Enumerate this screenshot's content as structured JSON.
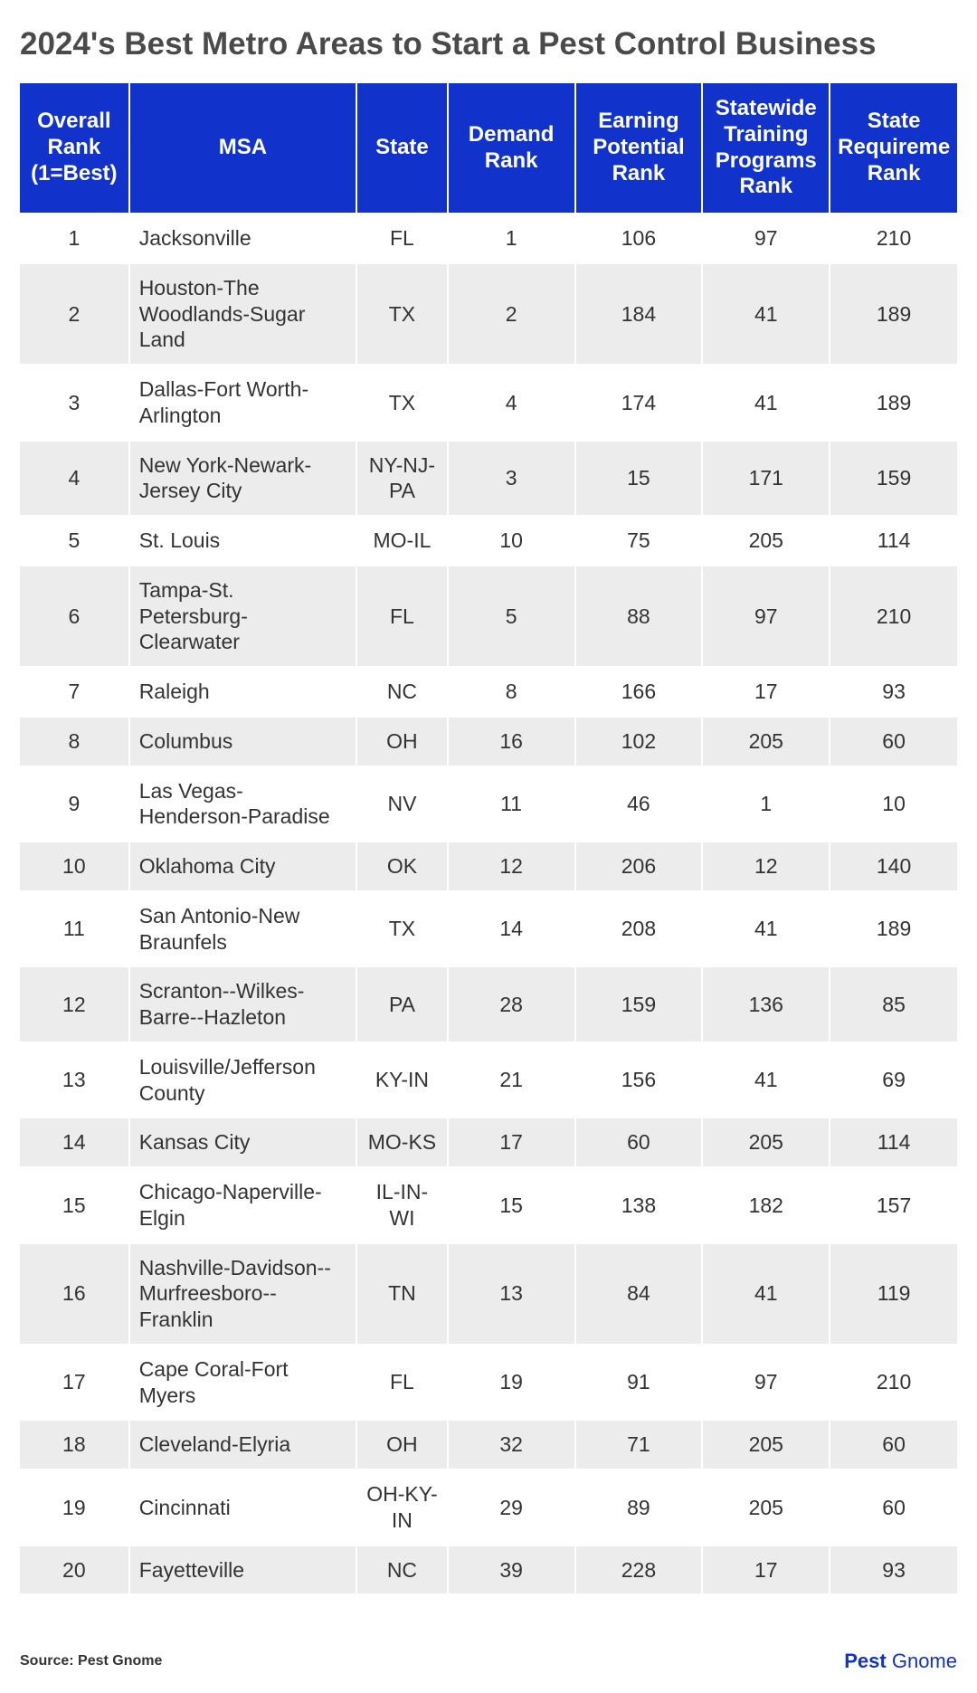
{
  "title": "2024's Best Metro Areas to Start a Pest Control Business",
  "header_bg": "#1133cc",
  "header_fg": "#ffffff",
  "row_bg_odd": "#ffffff",
  "row_bg_even": "#ececec",
  "cell_fg": "#333333",
  "title_fg": "#4a4a4a",
  "columns": [
    "Overall Rank (1=Best)",
    "MSA",
    "State",
    "Demand Rank",
    "Earning Potential Rank",
    "Statewide Training Programs Rank",
    "State Requireme Rank"
  ],
  "rows": [
    {
      "rank": "1",
      "msa": "Jacksonville",
      "state": "FL",
      "demand": "1",
      "earning": "106",
      "training": "97",
      "req": "210"
    },
    {
      "rank": "2",
      "msa": "Houston-The Woodlands-Sugar Land",
      "state": "TX",
      "demand": "2",
      "earning": "184",
      "training": "41",
      "req": "189"
    },
    {
      "rank": "3",
      "msa": "Dallas-Fort Worth-Arlington",
      "state": "TX",
      "demand": "4",
      "earning": "174",
      "training": "41",
      "req": "189"
    },
    {
      "rank": "4",
      "msa": "New York-Newark-Jersey City",
      "state": "NY-NJ-PA",
      "demand": "3",
      "earning": "15",
      "training": "171",
      "req": "159"
    },
    {
      "rank": "5",
      "msa": "St. Louis",
      "state": "MO-IL",
      "demand": "10",
      "earning": "75",
      "training": "205",
      "req": "114"
    },
    {
      "rank": "6",
      "msa": "Tampa-St. Petersburg-Clearwater",
      "state": "FL",
      "demand": "5",
      "earning": "88",
      "training": "97",
      "req": "210"
    },
    {
      "rank": "7",
      "msa": "Raleigh",
      "state": "NC",
      "demand": "8",
      "earning": "166",
      "training": "17",
      "req": "93"
    },
    {
      "rank": "8",
      "msa": "Columbus",
      "state": "OH",
      "demand": "16",
      "earning": "102",
      "training": "205",
      "req": "60"
    },
    {
      "rank": "9",
      "msa": "Las Vegas-Henderson-Paradise",
      "state": "NV",
      "demand": "11",
      "earning": "46",
      "training": "1",
      "req": "10"
    },
    {
      "rank": "10",
      "msa": "Oklahoma City",
      "state": "OK",
      "demand": "12",
      "earning": "206",
      "training": "12",
      "req": "140"
    },
    {
      "rank": "11",
      "msa": "San Antonio-New Braunfels",
      "state": "TX",
      "demand": "14",
      "earning": "208",
      "training": "41",
      "req": "189"
    },
    {
      "rank": "12",
      "msa": "Scranton--Wilkes-Barre--Hazleton",
      "state": "PA",
      "demand": "28",
      "earning": "159",
      "training": "136",
      "req": "85"
    },
    {
      "rank": "13",
      "msa": "Louisville/Jefferson County",
      "state": "KY-IN",
      "demand": "21",
      "earning": "156",
      "training": "41",
      "req": "69"
    },
    {
      "rank": "14",
      "msa": "Kansas City",
      "state": "MO-KS",
      "demand": "17",
      "earning": "60",
      "training": "205",
      "req": "114"
    },
    {
      "rank": "15",
      "msa": "Chicago-Naperville-Elgin",
      "state": "IL-IN-WI",
      "demand": "15",
      "earning": "138",
      "training": "182",
      "req": "157"
    },
    {
      "rank": "16",
      "msa": "Nashville-Davidson--Murfreesboro--Franklin",
      "state": "TN",
      "demand": "13",
      "earning": "84",
      "training": "41",
      "req": "119"
    },
    {
      "rank": "17",
      "msa": "Cape Coral-Fort Myers",
      "state": "FL",
      "demand": "19",
      "earning": "91",
      "training": "97",
      "req": "210"
    },
    {
      "rank": "18",
      "msa": "Cleveland-Elyria",
      "state": "OH",
      "demand": "32",
      "earning": "71",
      "training": "205",
      "req": "60"
    },
    {
      "rank": "19",
      "msa": "Cincinnati",
      "state": "OH-KY-IN",
      "demand": "29",
      "earning": "89",
      "training": "205",
      "req": "60"
    },
    {
      "rank": "20",
      "msa": "Fayetteville",
      "state": "NC",
      "demand": "39",
      "earning": "228",
      "training": "17",
      "req": "93"
    }
  ],
  "source": "Source: Pest Gnome",
  "brand_bold": "Pest",
  "brand_light": " Gnome"
}
